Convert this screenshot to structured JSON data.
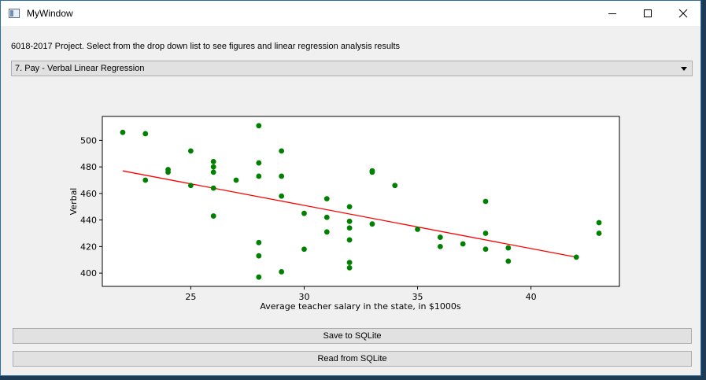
{
  "window": {
    "title": "MyWindow",
    "controls": {
      "minimize": "minimize-icon",
      "maximize": "maximize-icon",
      "close": "close-icon"
    }
  },
  "intro_text": "6018-2017 Project. Select from the drop down list to see figures and linear regression analysis results",
  "dropdown": {
    "selected": "7. Pay - Verbal Linear Regression"
  },
  "buttons": {
    "save": "Save to SQLite",
    "read": "Read from SQLite"
  },
  "colors": {
    "points": "#008000",
    "line": "#ff0000"
  },
  "chart_data": {
    "type": "scatter",
    "title": "",
    "xlabel": "Average teacher salary in the state, in $1000s",
    "ylabel": "Verbal",
    "xlim": [
      21.1,
      43.9
    ],
    "ylim": [
      390,
      518
    ],
    "xticks": [
      25,
      30,
      35,
      40
    ],
    "yticks": [
      400,
      420,
      440,
      460,
      480,
      500
    ],
    "grid": false,
    "points": [
      [
        22,
        506
      ],
      [
        23,
        505
      ],
      [
        23,
        470
      ],
      [
        24,
        478
      ],
      [
        24,
        476
      ],
      [
        25,
        492
      ],
      [
        25,
        466
      ],
      [
        26,
        484
      ],
      [
        26,
        480
      ],
      [
        26,
        476
      ],
      [
        26,
        464
      ],
      [
        26,
        443
      ],
      [
        27,
        470
      ],
      [
        28,
        511
      ],
      [
        28,
        483
      ],
      [
        28,
        473
      ],
      [
        28,
        423
      ],
      [
        28,
        413
      ],
      [
        28,
        397
      ],
      [
        29,
        492
      ],
      [
        29,
        473
      ],
      [
        29,
        458
      ],
      [
        29,
        401
      ],
      [
        30,
        445
      ],
      [
        30,
        418
      ],
      [
        31,
        456
      ],
      [
        31,
        442
      ],
      [
        31,
        431
      ],
      [
        32,
        450
      ],
      [
        32,
        439
      ],
      [
        32,
        434
      ],
      [
        32,
        425
      ],
      [
        32,
        408
      ],
      [
        32,
        404
      ],
      [
        33,
        477
      ],
      [
        33,
        476
      ],
      [
        33,
        437
      ],
      [
        34,
        466
      ],
      [
        35,
        433
      ],
      [
        36,
        427
      ],
      [
        36,
        420
      ],
      [
        37,
        422
      ],
      [
        38,
        454
      ],
      [
        38,
        430
      ],
      [
        38,
        418
      ],
      [
        39,
        419
      ],
      [
        39,
        409
      ],
      [
        42,
        412
      ],
      [
        43,
        438
      ],
      [
        43,
        430
      ]
    ],
    "regression_line": {
      "x": [
        22,
        42
      ],
      "y": [
        477,
        412
      ]
    }
  }
}
